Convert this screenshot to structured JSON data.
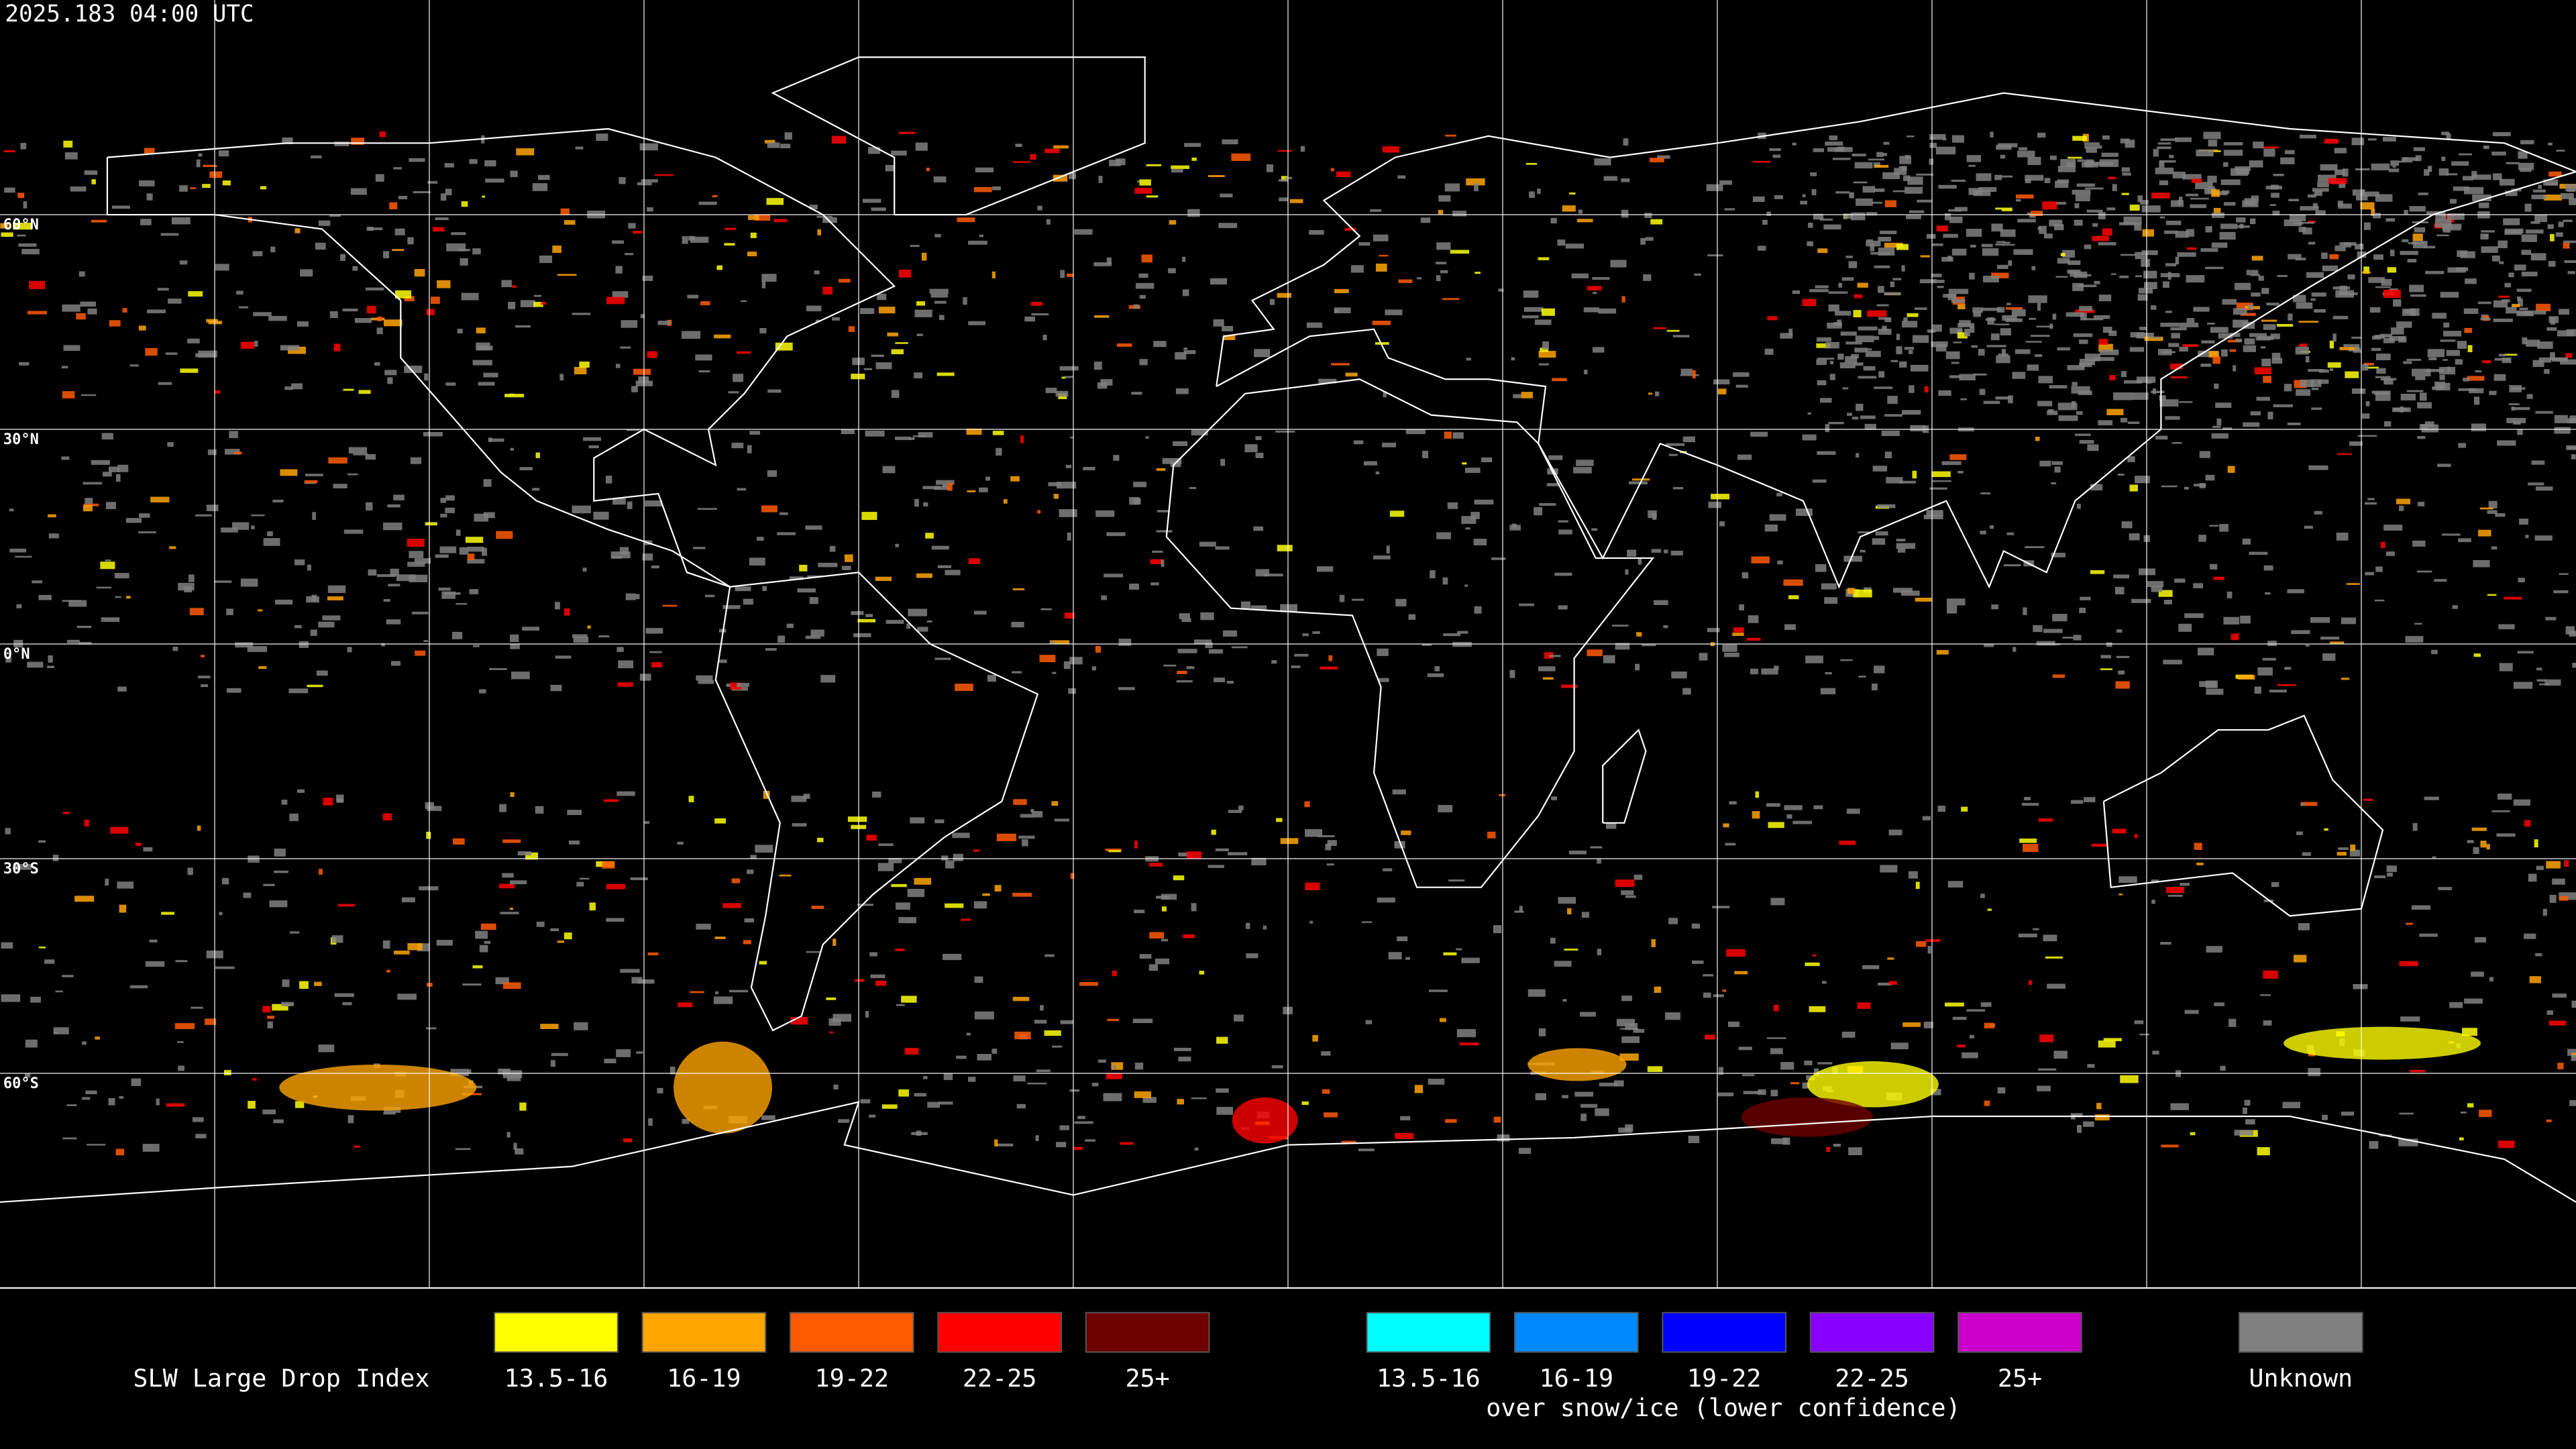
{
  "header": {
    "timestamp": "2025.183 04:00 UTC"
  },
  "map": {
    "lat_labels": [
      "60°N",
      "30°N",
      "0°N",
      "30°S",
      "60°S"
    ]
  },
  "legend": {
    "title": "SLW Large Drop Index",
    "items": [
      {
        "label": "13.5-16",
        "color": "#ffff00"
      },
      {
        "label": "16-19",
        "color": "#ffa500"
      },
      {
        "label": "19-22",
        "color": "#ff5a00"
      },
      {
        "label": "22-25",
        "color": "#ff0000"
      },
      {
        "label": "25+",
        "color": "#6e0000"
      }
    ],
    "snow_items": [
      {
        "label": "13.5-16",
        "color": "#00ffff"
      },
      {
        "label": "16-19",
        "color": "#0088ff"
      },
      {
        "label": "19-22",
        "color": "#0000ff"
      },
      {
        "label": "22-25",
        "color": "#8800ff"
      },
      {
        "label": "25+",
        "color": "#cc00cc"
      }
    ],
    "snow_caption": "over snow/ice (lower confidence)",
    "unknown": {
      "label": "Unknown",
      "color": "#808080"
    }
  }
}
